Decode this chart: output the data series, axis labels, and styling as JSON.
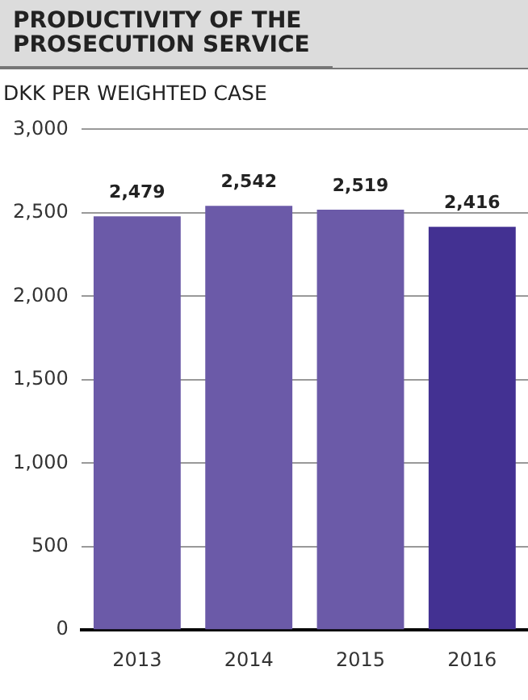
{
  "chart_data": {
    "type": "bar",
    "title": "PRODUCTIVITY OF THE PROSECUTION SERVICE",
    "subtitle": "DKK PER WEIGHTED CASE",
    "categories": [
      "2013",
      "2014",
      "2015",
      "2016"
    ],
    "values": [
      2479,
      2542,
      2519,
      2416
    ],
    "colors": [
      "#6b5aa8",
      "#6b5aa8",
      "#6b5aa8",
      "#433192"
    ],
    "ylim": [
      0,
      3000
    ],
    "yticks": [
      0,
      500,
      {
        "value": 1000,
        "label": "1,000"
      },
      {
        "value": 1500,
        "label": "1,500"
      },
      {
        "value": 2000,
        "label": "2,000"
      },
      {
        "value": 2500,
        "label": "2,500"
      },
      {
        "value": 3000,
        "label": "3,000"
      }
    ],
    "grid": "y",
    "value_labels": [
      "2,479",
      "2,542",
      "2,519",
      "2,416"
    ]
  }
}
